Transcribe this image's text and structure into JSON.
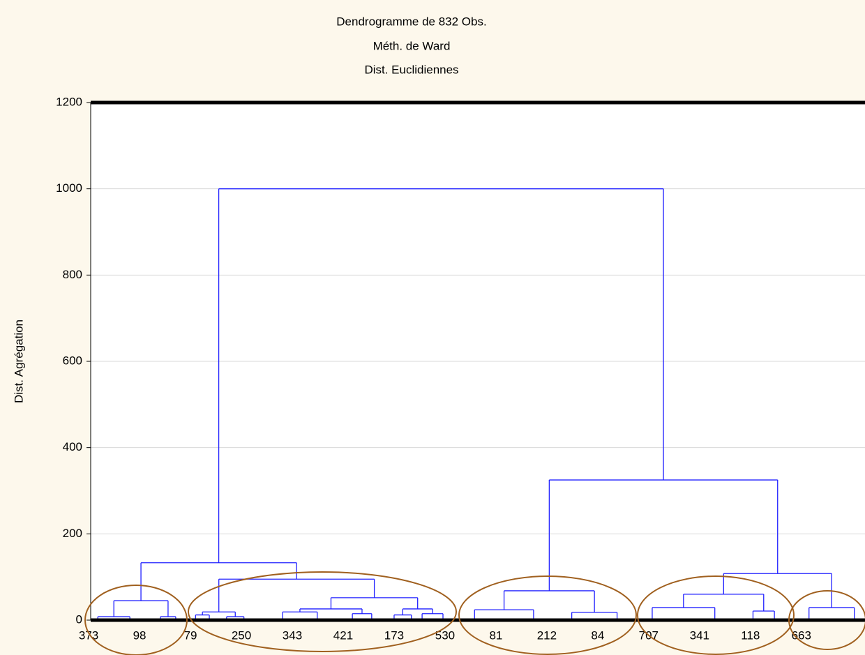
{
  "chart_data": {
    "type": "dendrogram",
    "title": "Dendrogramme de 832 Obs.",
    "subtitle": [
      "Méth. de Ward",
      "Dist. Euclidiennes"
    ],
    "y_label": "Dist. Agrégation",
    "categories": [
      "373",
      "98",
      "79",
      "250",
      "343",
      "421",
      "173",
      "530",
      "81",
      "212",
      "84",
      "707",
      "341",
      "118",
      "663"
    ],
    "xlim": [
      0.04,
      15.25
    ],
    "ylim": [
      0,
      1200
    ],
    "yticks": [
      0,
      200,
      400,
      600,
      800,
      1000,
      1200
    ],
    "grid": true,
    "color": "#1f1fff",
    "tree": {
      "height": 1000,
      "children": [
        {
          "height": 133,
          "children": [
            {
              "height": 45,
              "children": [
                {
                  "height": 8,
                  "children": [
                    {
                      "x": 0.18
                    },
                    {
                      "x": 0.81
                    }
                  ]
                },
                {
                  "height": 8,
                  "children": [
                    {
                      "x": 1.41
                    },
                    {
                      "x": 1.71
                    }
                  ]
                }
              ]
            },
            {
              "height": 95,
              "children": [
                {
                  "height": 19,
                  "children": [
                    {
                      "height": 12,
                      "children": [
                        {
                          "x": 2.1
                        },
                        {
                          "x": 2.37
                        }
                      ]
                    },
                    {
                      "height": 8,
                      "children": [
                        {
                          "x": 2.71
                        },
                        {
                          "x": 3.05
                        }
                      ]
                    }
                  ]
                },
                {
                  "height": 52,
                  "children": [
                    {
                      "height": 26,
                      "children": [
                        {
                          "height": 19,
                          "children": [
                            {
                              "x": 3.81
                            },
                            {
                              "x": 4.49
                            }
                          ]
                        },
                        {
                          "height": 15,
                          "children": [
                            {
                              "x": 5.18
                            },
                            {
                              "x": 5.56
                            }
                          ]
                        }
                      ]
                    },
                    {
                      "height": 26,
                      "children": [
                        {
                          "height": 12,
                          "children": [
                            {
                              "x": 6.0
                            },
                            {
                              "x": 6.34
                            }
                          ]
                        },
                        {
                          "height": 15,
                          "children": [
                            {
                              "x": 6.55
                            },
                            {
                              "x": 6.96
                            }
                          ]
                        }
                      ]
                    }
                  ]
                }
              ]
            }
          ]
        },
        {
          "height": 325,
          "children": [
            {
              "height": 68,
              "children": [
                {
                  "height": 24,
                  "children": [
                    {
                      "x": 7.58
                    },
                    {
                      "x": 8.74
                    }
                  ]
                },
                {
                  "height": 18,
                  "children": [
                    {
                      "x": 9.49
                    },
                    {
                      "x": 10.38
                    }
                  ]
                }
              ]
            },
            {
              "height": 108,
              "children": [
                {
                  "height": 60,
                  "children": [
                    {
                      "height": 29,
                      "children": [
                        {
                          "x": 11.07
                        },
                        {
                          "x": 12.3
                        }
                      ]
                    },
                    {
                      "height": 21,
                      "children": [
                        {
                          "x": 13.05
                        },
                        {
                          "x": 13.47
                        }
                      ]
                    }
                  ]
                },
                {
                  "height": 29,
                  "children": [
                    {
                      "x": 14.15
                    },
                    {
                      "x": 15.04
                    }
                  ]
                }
              ]
            }
          ]
        }
      ]
    }
  }
}
